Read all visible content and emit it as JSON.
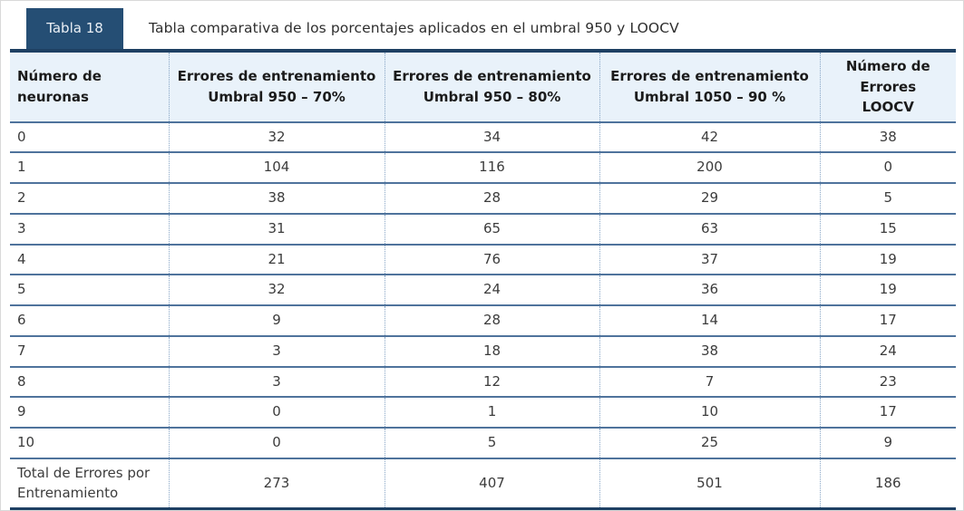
{
  "page": {
    "badge_label": "Tabla 18",
    "caption": "Tabla comparativa de los porcentajes aplicados en el umbral 950 y LOOCV"
  },
  "colors": {
    "badge_navy": "#254e74",
    "heavy_border_navy": "#1e4063",
    "row_line_blue": "#4f739c",
    "dotted_divider_blue": "#88a6c6",
    "header_background": "#e9f2fa",
    "header_text": "#1b1b1b",
    "body_text": "#3c3c3c"
  },
  "table": {
    "headers": [
      "Número de\nneuronas",
      "Errores de entrenamiento\nUmbral 950 – 70%",
      "Errores de entrenamiento\nUmbral 950 – 80%",
      "Errores de entrenamiento\nUmbral 1050 – 90 %",
      "Número de\nErrores\nLOOCV"
    ],
    "rows": [
      [
        "0",
        "32",
        "34",
        "42",
        "38"
      ],
      [
        "1",
        "104",
        "116",
        "200",
        "0"
      ],
      [
        "2",
        "38",
        "28",
        "29",
        "5"
      ],
      [
        "3",
        "31",
        "65",
        "63",
        "15"
      ],
      [
        "4",
        "21",
        "76",
        "37",
        "19"
      ],
      [
        "5",
        "32",
        "24",
        "36",
        "19"
      ],
      [
        "6",
        "9",
        "28",
        "14",
        "17"
      ],
      [
        "7",
        "3",
        "18",
        "38",
        "24"
      ],
      [
        "8",
        "3",
        "12",
        "7",
        "23"
      ],
      [
        "9",
        "0",
        "1",
        "10",
        "17"
      ],
      [
        "10",
        "0",
        "5",
        "25",
        "9"
      ],
      [
        "Total de Errores por\nEntrenamiento",
        "273",
        "407",
        "501",
        "186"
      ]
    ]
  }
}
